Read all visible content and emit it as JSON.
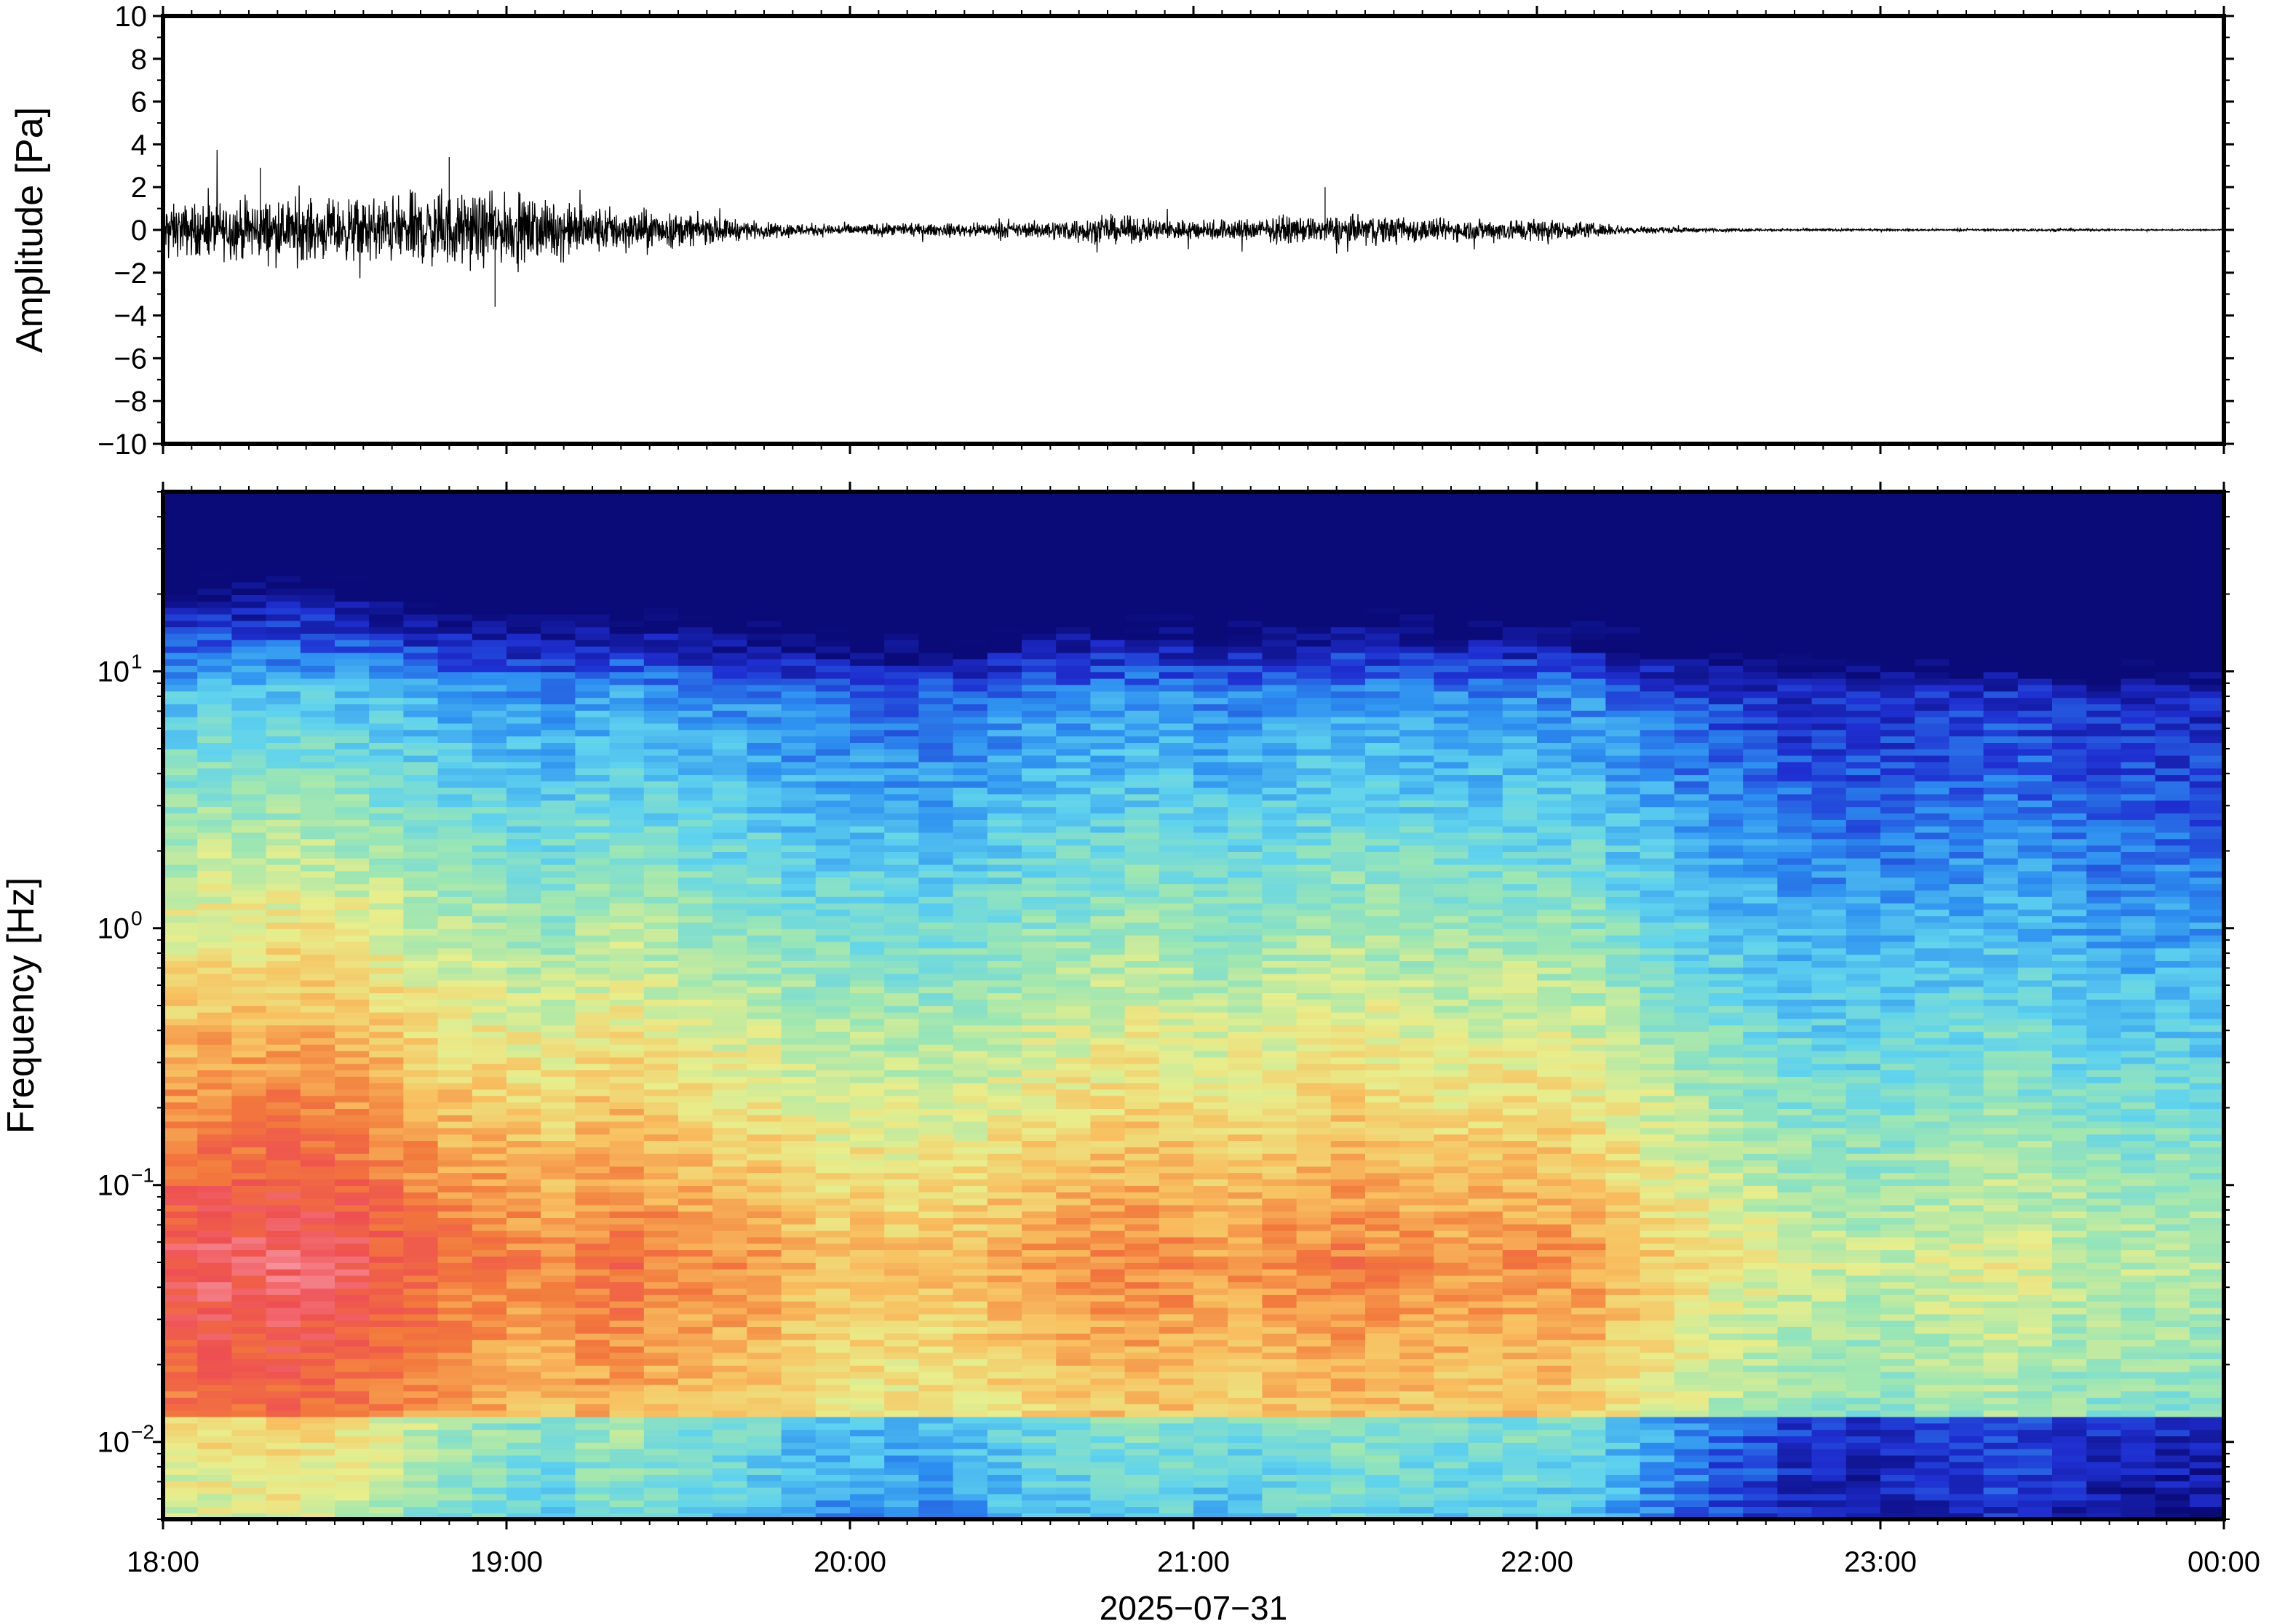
{
  "chart_data": [
    {
      "type": "line",
      "panel": "waveform",
      "ylabel": "Amplitude [Pa]",
      "ylim": [
        -10,
        10
      ],
      "yticks": [
        -10,
        -8,
        -6,
        -4,
        -2,
        0,
        2,
        4,
        6,
        8,
        10
      ],
      "ytick_labels": [
        "−10",
        "−8",
        "−6",
        "−4",
        "−2",
        "0",
        "2",
        "4",
        "6",
        "8",
        "10"
      ],
      "x": [
        "18:00",
        "18:15",
        "18:30",
        "18:45",
        "19:00",
        "19:15",
        "19:30",
        "19:45",
        "20:00",
        "20:15",
        "20:30",
        "20:45",
        "21:00",
        "21:15",
        "21:30",
        "21:45",
        "22:00",
        "22:15",
        "22:30",
        "22:45",
        "23:00",
        "23:15",
        "23:30",
        "23:45",
        "00:00"
      ],
      "envelope": [
        1.6,
        2.0,
        1.9,
        2.4,
        2.2,
        1.6,
        1.1,
        0.5,
        0.4,
        0.4,
        0.5,
        0.9,
        0.7,
        0.8,
        1.0,
        0.7,
        0.8,
        0.3,
        0.12,
        0.08,
        0.06,
        0.06,
        0.08,
        0.05,
        0.05
      ],
      "peaks": [
        {
          "time": "18:17",
          "value": 2.9
        },
        {
          "time": "18:50",
          "value": 3.4
        },
        {
          "time": "18:58",
          "value": -3.6
        },
        {
          "time": "21:23",
          "value": 2.0
        }
      ],
      "series": [
        {
          "values": [
            1.6,
            2.0,
            1.9,
            2.4,
            2.2,
            1.6,
            1.1,
            0.5,
            0.4,
            0.4,
            0.5,
            0.9,
            0.7,
            0.8,
            1.0,
            0.7,
            0.8,
            0.3,
            0.12,
            0.08,
            0.06,
            0.06,
            0.08,
            0.05,
            0.05
          ],
          "color": "#000000"
        }
      ]
    },
    {
      "type": "heatmap",
      "panel": "spectrogram",
      "ylabel": "Frequency [Hz]",
      "xlabel": "2025−07−31",
      "y_scale": "log",
      "ylim": [
        0.005,
        50
      ],
      "yticks": [
        0.01,
        0.1,
        1,
        10
      ],
      "ytick_labels": [
        {
          "base": "10",
          "exp": "−2"
        },
        {
          "base": "10",
          "exp": "−1"
        },
        {
          "base": "10",
          "exp": "0"
        },
        {
          "base": "10",
          "exp": "1"
        }
      ],
      "xticks": [
        "18:00",
        "19:00",
        "20:00",
        "21:00",
        "22:00",
        "23:00",
        "00:00"
      ],
      "x_range_hours": [
        18,
        24
      ],
      "colormap": [
        "#0a0a78",
        "#1f2fd1",
        "#2d8ff0",
        "#5fd3ee",
        "#9be6b4",
        "#e8ee8c",
        "#f8c060",
        "#f2783c",
        "#ee4f52",
        "#f89aa4"
      ],
      "time_columns": 60,
      "activity_by_time": [
        0.95,
        0.98,
        0.97,
        1.0,
        0.98,
        0.95,
        0.9,
        0.85,
        0.8,
        0.78,
        0.75,
        0.72,
        0.78,
        0.8,
        0.76,
        0.72,
        0.7,
        0.68,
        0.62,
        0.6,
        0.6,
        0.58,
        0.58,
        0.6,
        0.64,
        0.68,
        0.7,
        0.72,
        0.74,
        0.72,
        0.68,
        0.7,
        0.72,
        0.74,
        0.76,
        0.74,
        0.72,
        0.7,
        0.7,
        0.72,
        0.7,
        0.68,
        0.62,
        0.56,
        0.5,
        0.45,
        0.42,
        0.38,
        0.36,
        0.35,
        0.36,
        0.38,
        0.4,
        0.42,
        0.4,
        0.36,
        0.34,
        0.33,
        0.33,
        0.32
      ]
    }
  ]
}
